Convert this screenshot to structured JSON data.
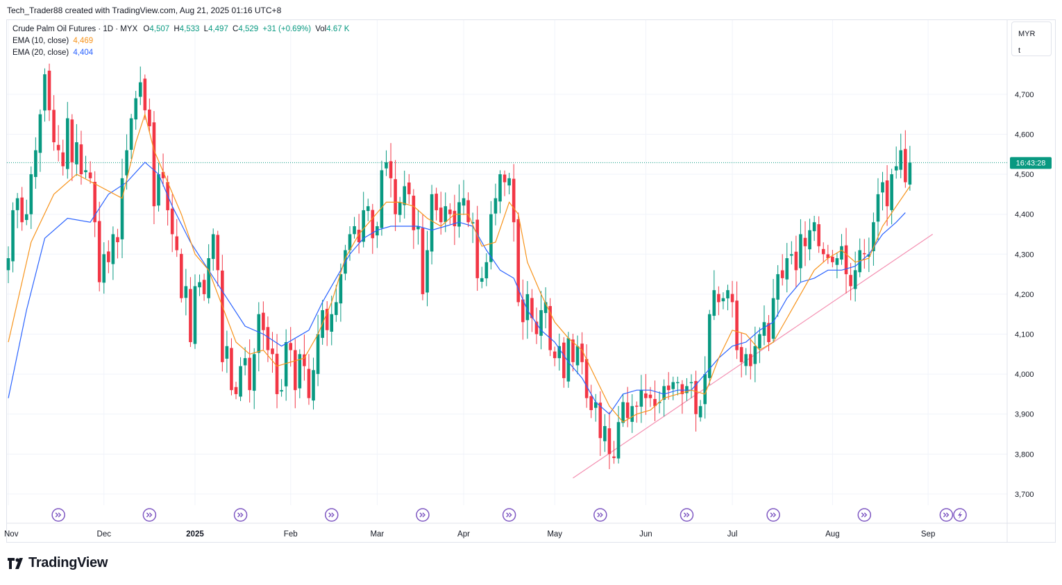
{
  "header": {
    "attribution": "Tech_Trader88 created with TradingView.com, Aug 21, 2025 01:16 UTC+8"
  },
  "legend": {
    "symbol": "Crude Palm Oil Futures · 1D · MYX",
    "o_label": "O",
    "o_value": "4,507",
    "h_label": "H",
    "h_value": "4,533",
    "l_label": "L",
    "l_value": "4,497",
    "c_label": "C",
    "c_value": "4,529",
    "change": "+31 (+0.69%)",
    "vol_label": "Vol",
    "vol_value": "4.67 K",
    "ema10_label": "EMA (10, close)",
    "ema10_value": "4,469",
    "ema20_label": "EMA (20, close)",
    "ema20_value": "4,404"
  },
  "currency_box": {
    "currency": "MYR",
    "unit": "t"
  },
  "countdown": "16:43:28",
  "logo_text": "TradingView",
  "colors": {
    "up": "#089981",
    "down": "#f23645",
    "ema10": "#f7931a",
    "ema20": "#2962ff",
    "trendline": "#f48fb1",
    "events": "#7e57c2"
  },
  "chart_data": {
    "type": "candlestick",
    "title": "Crude Palm Oil Futures · 1D · MYX",
    "ylim": [
      3680,
      4790
    ],
    "y_ticks": [
      3700,
      3800,
      3900,
      4000,
      4100,
      4200,
      4300,
      4400,
      4500,
      4600,
      4700
    ],
    "y_tick_labels": [
      "3,700",
      "3,800",
      "3,900",
      "4,000",
      "4,100",
      "4,200",
      "4,300",
      "4,400",
      "4,500",
      "4,600",
      "4,700"
    ],
    "x_labels": [
      {
        "label": "Nov",
        "bar": 0
      },
      {
        "label": "Dec",
        "bar": 21
      },
      {
        "label": "2025",
        "bar": 41
      },
      {
        "label": "Feb",
        "bar": 62
      },
      {
        "label": "Mar",
        "bar": 81
      },
      {
        "label": "Apr",
        "bar": 100
      },
      {
        "label": "May",
        "bar": 120
      },
      {
        "label": "Jun",
        "bar": 140
      },
      {
        "label": "Jul",
        "bar": 159
      },
      {
        "label": "Aug",
        "bar": 181
      },
      {
        "label": "Sep",
        "bar": 202
      }
    ],
    "current_price": 4529,
    "series_close": [
      4290,
      4410,
      4440,
      4380,
      4400,
      4500,
      4560,
      4650,
      4750,
      4660,
      4580,
      4560,
      4520,
      4640,
      4530,
      4580,
      4500,
      4510,
      4490,
      4380,
      4230,
      4300,
      4280,
      4350,
      4330,
      4490,
      4560,
      4640,
      4690,
      4730,
      4660,
      4620,
      4420,
      4500,
      4490,
      4410,
      4350,
      4310,
      4190,
      4220,
      4080,
      4220,
      4230,
      4200,
      4290,
      4350,
      4260,
      4030,
      4070,
      3960,
      3950,
      4020,
      4040,
      3960,
      4050,
      4150,
      4110,
      4060,
      4050,
      3950,
      3960,
      4080,
      4060,
      3960,
      4050,
      4020,
      3940,
      4010,
      4100,
      4160,
      4110,
      4150,
      4180,
      4250,
      4310,
      4350,
      4370,
      4330,
      4410,
      4420,
      4340,
      4370,
      4510,
      4530,
      4490,
      4400,
      4430,
      4470,
      4450,
      4360,
      4370,
      4200,
      4310,
      4450,
      4410,
      4380,
      4420,
      4400,
      4370,
      4430,
      4440,
      4380,
      4380,
      4240,
      4240,
      4280,
      4400,
      4440,
      4500,
      4480,
      4490,
      4380,
      4180,
      4130,
      4200,
      4140,
      4100,
      4160,
      4180,
      4060,
      4040,
      4070,
      3990,
      4090,
      4030,
      4070,
      4030,
      3940,
      3910,
      3930,
      3840,
      3870,
      3800,
      3790,
      3880,
      3930,
      3890,
      3920,
      3920,
      3960,
      3940,
      3940,
      3920,
      3930,
      3970,
      3960,
      3980,
      3980,
      3950,
      3970,
      3980,
      3900,
      3920,
      4000,
      4150,
      4210,
      4180,
      4190,
      4210,
      4180,
      4060,
      4030,
      4050,
      4020,
      4070,
      4100,
      4130,
      4080,
      4190,
      4250,
      4240,
      4290,
      4300,
      4260,
      4350,
      4320,
      4360,
      4380,
      4320,
      4300,
      4290,
      4280,
      4290,
      4320,
      4250,
      4220,
      4260,
      4310,
      4300,
      4300,
      4380,
      4450,
      4480,
      4420,
      4500,
      4520,
      4560,
      4480,
      4529
    ],
    "ema10_points": [
      [
        0,
        4080
      ],
      [
        5,
        4330
      ],
      [
        10,
        4450
      ],
      [
        15,
        4500
      ],
      [
        20,
        4470
      ],
      [
        25,
        4440
      ],
      [
        28,
        4580
      ],
      [
        30,
        4650
      ],
      [
        32,
        4560
      ],
      [
        35,
        4480
      ],
      [
        38,
        4400
      ],
      [
        41,
        4300
      ],
      [
        44,
        4260
      ],
      [
        47,
        4170
      ],
      [
        50,
        4080
      ],
      [
        53,
        4050
      ],
      [
        56,
        4060
      ],
      [
        59,
        4020
      ],
      [
        62,
        4030
      ],
      [
        65,
        4040
      ],
      [
        68,
        4100
      ],
      [
        71,
        4180
      ],
      [
        74,
        4290
      ],
      [
        77,
        4350
      ],
      [
        80,
        4390
      ],
      [
        83,
        4430
      ],
      [
        86,
        4430
      ],
      [
        89,
        4420
      ],
      [
        92,
        4390
      ],
      [
        95,
        4370
      ],
      [
        98,
        4400
      ],
      [
        101,
        4400
      ],
      [
        104,
        4320
      ],
      [
        107,
        4330
      ],
      [
        110,
        4430
      ],
      [
        112,
        4400
      ],
      [
        114,
        4280
      ],
      [
        117,
        4200
      ],
      [
        120,
        4130
      ],
      [
        123,
        4090
      ],
      [
        126,
        4060
      ],
      [
        129,
        3990
      ],
      [
        132,
        3920
      ],
      [
        135,
        3880
      ],
      [
        138,
        3900
      ],
      [
        141,
        3910
      ],
      [
        144,
        3940
      ],
      [
        147,
        3950
      ],
      [
        150,
        3960
      ],
      [
        153,
        3950
      ],
      [
        156,
        4040
      ],
      [
        159,
        4110
      ],
      [
        162,
        4100
      ],
      [
        165,
        4060
      ],
      [
        168,
        4080
      ],
      [
        171,
        4140
      ],
      [
        174,
        4200
      ],
      [
        177,
        4260
      ],
      [
        180,
        4290
      ],
      [
        183,
        4310
      ],
      [
        186,
        4280
      ],
      [
        189,
        4290
      ],
      [
        192,
        4370
      ],
      [
        195,
        4420
      ],
      [
        198,
        4470
      ]
    ],
    "ema20_points": [
      [
        0,
        3940
      ],
      [
        4,
        4160
      ],
      [
        8,
        4340
      ],
      [
        13,
        4390
      ],
      [
        18,
        4380
      ],
      [
        22,
        4450
      ],
      [
        26,
        4480
      ],
      [
        30,
        4530
      ],
      [
        33,
        4500
      ],
      [
        36,
        4420
      ],
      [
        40,
        4330
      ],
      [
        44,
        4260
      ],
      [
        48,
        4190
      ],
      [
        52,
        4120
      ],
      [
        56,
        4100
      ],
      [
        60,
        4070
      ],
      [
        63,
        4090
      ],
      [
        66,
        4110
      ],
      [
        69,
        4180
      ],
      [
        72,
        4240
      ],
      [
        75,
        4300
      ],
      [
        78,
        4340
      ],
      [
        81,
        4360
      ],
      [
        84,
        4370
      ],
      [
        87,
        4370
      ],
      [
        90,
        4370
      ],
      [
        93,
        4360
      ],
      [
        96,
        4370
      ],
      [
        99,
        4380
      ],
      [
        102,
        4370
      ],
      [
        105,
        4310
      ],
      [
        108,
        4260
      ],
      [
        111,
        4240
      ],
      [
        114,
        4160
      ],
      [
        117,
        4110
      ],
      [
        120,
        4080
      ],
      [
        123,
        4030
      ],
      [
        126,
        3990
      ],
      [
        129,
        3930
      ],
      [
        132,
        3900
      ],
      [
        135,
        3950
      ],
      [
        138,
        3960
      ],
      [
        141,
        3960
      ],
      [
        144,
        3950
      ],
      [
        147,
        3960
      ],
      [
        150,
        3960
      ],
      [
        153,
        4000
      ],
      [
        156,
        4040
      ],
      [
        159,
        4070
      ],
      [
        162,
        4080
      ],
      [
        165,
        4110
      ],
      [
        168,
        4130
      ],
      [
        171,
        4190
      ],
      [
        174,
        4230
      ],
      [
        177,
        4240
      ],
      [
        180,
        4260
      ],
      [
        183,
        4260
      ],
      [
        186,
        4270
      ],
      [
        189,
        4300
      ],
      [
        192,
        4350
      ],
      [
        195,
        4380
      ],
      [
        197,
        4404
      ]
    ],
    "trendline": [
      [
        124,
        3740
      ],
      [
        203,
        4350
      ]
    ],
    "event_bars": [
      11,
      31,
      51,
      71,
      91,
      110,
      130,
      149,
      168,
      188,
      206
    ],
    "last_event_bar": 209
  }
}
